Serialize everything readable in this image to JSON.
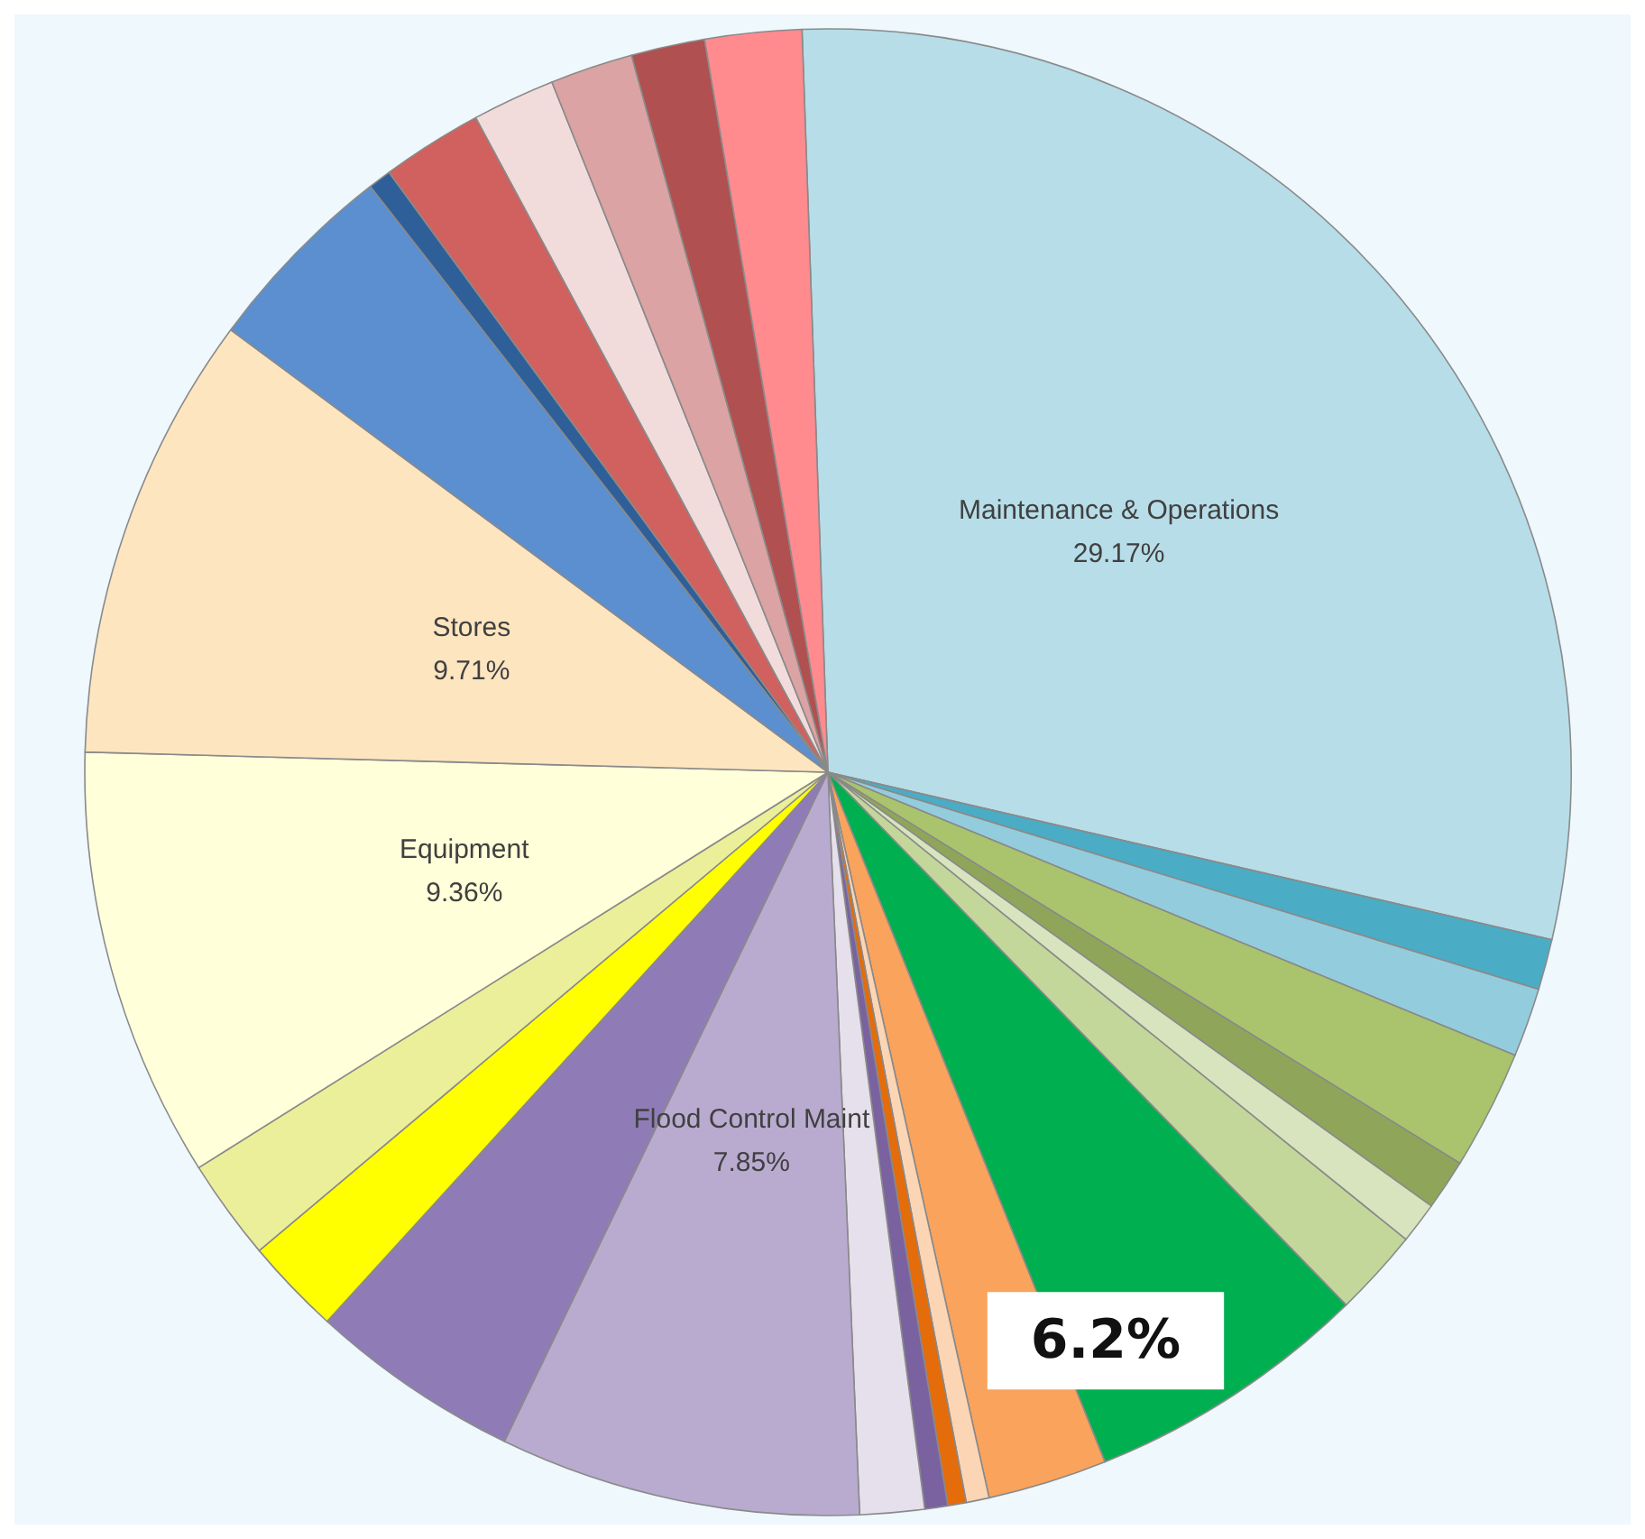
{
  "chart_data": {
    "type": "pie",
    "categories": [
      "Maintenance & Operations",
      null,
      null,
      null,
      null,
      null,
      null,
      null,
      null,
      null,
      null,
      null,
      null,
      "Flood Control Maint",
      null,
      null,
      null,
      "Equipment",
      "Stores",
      null,
      null,
      null,
      null,
      null,
      null,
      null
    ],
    "values": [
      29.17,
      1.1,
      1.5,
      2.6,
      1.1,
      0.9,
      1.9,
      6.2,
      2.6,
      0.5,
      0.4,
      0.5,
      1.4,
      7.85,
      4.6,
      2.1,
      2.2,
      9.36,
      9.71,
      4.3,
      0.5,
      2.2,
      1.8,
      1.8,
      1.6,
      2.1
    ],
    "value_labels": [
      "29.17%",
      null,
      null,
      null,
      null,
      null,
      null,
      "6.2%",
      null,
      null,
      null,
      null,
      null,
      "7.85%",
      null,
      null,
      null,
      "9.36%",
      "9.71%",
      null,
      null,
      null,
      null,
      null,
      null,
      null
    ],
    "colors": [
      "#b7dde8",
      "#4bacc6",
      "#93cddd",
      "#a9c46c",
      "#8fa65a",
      "#d7e4bd",
      "#c4d79b",
      "#00b050",
      "#f9a35c",
      "#fcd5b5",
      "#e46c0a",
      "#7a62a0",
      "#e6e0ec",
      "#b9abd0",
      "#8f7cb7",
      "#ffff00",
      "#ebef9a",
      "#ffffd9",
      "#fde5c0",
      "#5b8fcf",
      "#2e5f98",
      "#d0615e",
      "#f2dcdb",
      "#dba3a3",
      "#b05050",
      "#ff8b8f"
    ]
  }
}
